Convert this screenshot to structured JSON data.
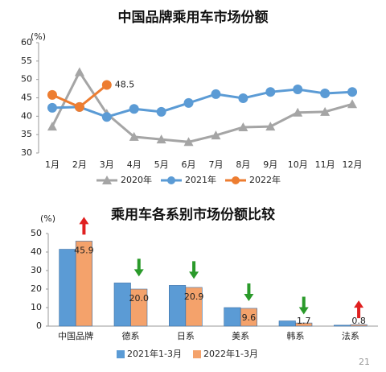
{
  "chart_data": [
    {
      "type": "line",
      "title": "中国品牌乘用车市场份额",
      "y_unit": "(%)",
      "categories": [
        "1月",
        "2月",
        "3月",
        "4月",
        "5月",
        "6月",
        "7月",
        "8月",
        "9月",
        "10月",
        "11月",
        "12月"
      ],
      "ylim": [
        30,
        60
      ],
      "yticks": [
        30,
        35,
        40,
        45,
        50,
        55,
        60
      ],
      "series": [
        {
          "name": "2020年",
          "color": "#a5a5a5",
          "marker": "triangle",
          "values": [
            37.2,
            52,
            40.7,
            34.4,
            33.7,
            33,
            34.8,
            37,
            37.2,
            41,
            41.2,
            43.3
          ]
        },
        {
          "name": "2021年",
          "color": "#5b9bd5",
          "marker": "circle",
          "values": [
            42.3,
            42.5,
            39.8,
            42,
            41.2,
            43.6,
            46,
            44.9,
            46.6,
            47.3,
            46.2,
            46.6
          ]
        },
        {
          "name": "2022年",
          "color": "#ed7d31",
          "marker": "circle",
          "values": [
            45.8,
            42.5,
            48.5,
            null,
            null,
            null,
            null,
            null,
            null,
            null,
            null,
            null
          ],
          "value_labels": [
            null,
            null,
            "48.5",
            null,
            null,
            null,
            null,
            null,
            null,
            null,
            null,
            null
          ]
        }
      ]
    },
    {
      "type": "bar",
      "title": "乘用车各系别市场份额比较",
      "y_unit": "(%)",
      "categories": [
        "中国品牌",
        "德系",
        "日系",
        "美系",
        "韩系",
        "法系"
      ],
      "ylim": [
        0,
        50
      ],
      "yticks": [
        0,
        10,
        20,
        30,
        40,
        50
      ],
      "series": [
        {
          "name": "2021年1-3月",
          "color": "#5b9bd5",
          "values": [
            41.5,
            23.3,
            22,
            10,
            2.8,
            0.5
          ]
        },
        {
          "name": "2022年1-3月",
          "color": "#f4a26b",
          "values": [
            45.9,
            20,
            20.9,
            9.6,
            1.7,
            0.8
          ],
          "value_labels": [
            "45.9",
            "20.0",
            "20.9",
            "9.6",
            "1.7",
            "0.8"
          ]
        }
      ]
    }
  ],
  "page_number": "21"
}
